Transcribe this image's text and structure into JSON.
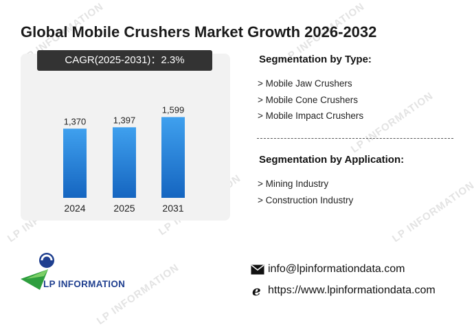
{
  "title": "Global Mobile Crushers Market Growth 2026-2032",
  "cagr_label": "CAGR(2025-2031)：2.3%",
  "chart_data": {
    "type": "bar",
    "categories": [
      "2024",
      "2025",
      "2031"
    ],
    "values": [
      1370,
      1397,
      1599
    ],
    "value_labels": [
      "1,370",
      "1,397",
      "1,599"
    ],
    "title": "",
    "xlabel": "",
    "ylabel": "",
    "ylim": [
      0,
      1700
    ],
    "grid": false,
    "bar_color_top": "#3fa0ee",
    "bar_color_bottom": "#1565c0"
  },
  "segmentation_type": {
    "title": "Segmentation by Type:",
    "items": [
      "> Mobile Jaw Crushers",
      "> Mobile Cone Crushers",
      "> Mobile Impact Crushers"
    ]
  },
  "segmentation_application": {
    "title": "Segmentation by Application:",
    "items": [
      "> Mining Industry",
      "> Construction Industry"
    ]
  },
  "logo": {
    "text": "LP INFORMATION"
  },
  "watermark": "LP INFORMATION",
  "contact": {
    "email": "info@lpinformationdata.com",
    "website": "https://www.lpinformationdata.com",
    "email_icon": "envelope-icon",
    "website_icon": "browser-e-icon"
  },
  "colors": {
    "accent_blue": "#1e88e5",
    "logo_blue": "#1f3f8f",
    "logo_green": "#2e9e3e"
  }
}
